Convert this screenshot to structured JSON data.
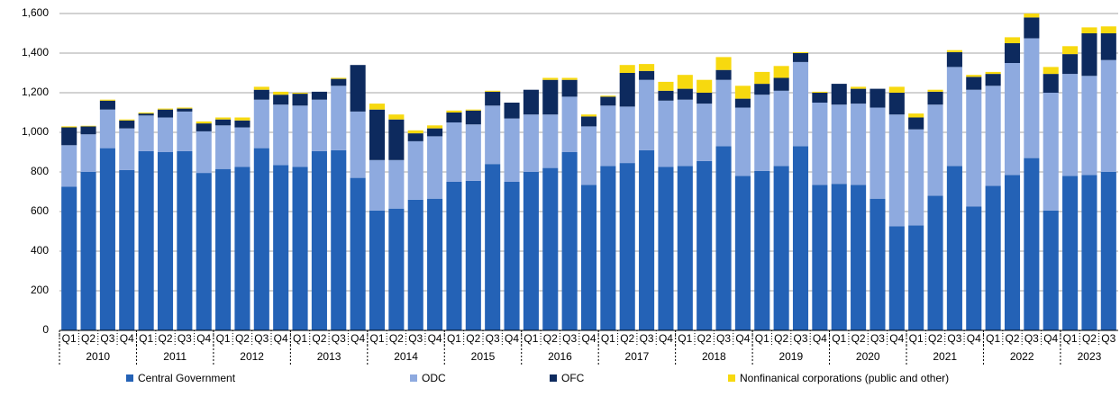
{
  "chart_data": {
    "type": "stacked_bar",
    "categories": [
      "Q1",
      "Q2",
      "Q3",
      "Q4",
      "Q1",
      "Q2",
      "Q3",
      "Q4",
      "Q1",
      "Q2",
      "Q3",
      "Q4",
      "Q1",
      "Q2",
      "Q3",
      "Q4",
      "Q1",
      "Q2",
      "Q3",
      "Q4",
      "Q1",
      "Q2",
      "Q3",
      "Q4",
      "Q1",
      "Q2",
      "Q3",
      "Q4",
      "Q1",
      "Q2",
      "Q3",
      "Q4",
      "Q1",
      "Q2",
      "Q3",
      "Q4",
      "Q1",
      "Q2",
      "Q3",
      "Q4",
      "Q1",
      "Q2",
      "Q3",
      "Q4",
      "Q1",
      "Q2",
      "Q3",
      "Q4",
      "Q1",
      "Q2",
      "Q3",
      "Q4",
      "Q1",
      "Q2",
      "Q3"
    ],
    "years": [
      "2010",
      "2011",
      "2012",
      "2013",
      "2014",
      "2015",
      "2016",
      "2017",
      "2018",
      "2019",
      "2020",
      "2021",
      "2022",
      "2023"
    ],
    "ylim": [
      0,
      1600
    ],
    "yticks": [
      0,
      200,
      400,
      600,
      800,
      {
        "value": 1000,
        "label": "1,000"
      },
      {
        "value": 1200,
        "label": "1,200"
      },
      {
        "value": 1400,
        "label": "1,400"
      },
      {
        "value": 1600,
        "label": "1,600"
      }
    ],
    "grid": true,
    "legend": "bottom",
    "series": [
      {
        "name": "Central Government",
        "color": "#2462b6",
        "values": [
          725,
          800,
          920,
          810,
          905,
          900,
          905,
          795,
          815,
          825,
          920,
          835,
          825,
          905,
          910,
          770,
          605,
          615,
          660,
          665,
          750,
          755,
          840,
          750,
          800,
          820,
          900,
          735,
          830,
          845,
          910,
          825,
          830,
          855,
          930,
          780,
          805,
          830,
          930,
          735,
          740,
          735,
          665,
          525,
          530,
          680,
          830,
          625,
          730,
          785,
          870,
          605,
          780,
          785,
          800
        ]
      },
      {
        "name": "ODC",
        "color": "#8eaadf",
        "values": [
          210,
          190,
          195,
          210,
          180,
          175,
          200,
          210,
          220,
          200,
          245,
          305,
          310,
          260,
          325,
          335,
          255,
          245,
          295,
          315,
          300,
          285,
          295,
          320,
          290,
          270,
          280,
          295,
          305,
          285,
          355,
          335,
          335,
          290,
          335,
          345,
          385,
          380,
          425,
          415,
          400,
          410,
          460,
          565,
          485,
          460,
          500,
          590,
          505,
          565,
          605,
          595,
          515,
          500,
          565
        ]
      },
      {
        "name": "OFC",
        "color": "#0d2a5e",
        "values": [
          90,
          40,
          45,
          40,
          10,
          40,
          15,
          40,
          30,
          35,
          50,
          50,
          60,
          40,
          35,
          235,
          255,
          205,
          40,
          40,
          50,
          70,
          70,
          80,
          125,
          175,
          85,
          50,
          45,
          170,
          45,
          50,
          55,
          55,
          50,
          45,
          55,
          65,
          45,
          50,
          105,
          75,
          95,
          110,
          60,
          65,
          75,
          65,
          60,
          100,
          105,
          95,
          100,
          215,
          135
        ]
      },
      {
        "name": "Nonfinanical corporations (public and other)",
        "color": "#f7d90f",
        "values": [
          5,
          3,
          5,
          5,
          5,
          5,
          5,
          10,
          10,
          15,
          15,
          15,
          5,
          0,
          5,
          0,
          30,
          25,
          15,
          15,
          10,
          5,
          5,
          0,
          0,
          10,
          10,
          10,
          5,
          40,
          35,
          45,
          70,
          65,
          65,
          65,
          60,
          60,
          5,
          5,
          0,
          10,
          0,
          30,
          20,
          10,
          10,
          10,
          10,
          30,
          20,
          35,
          40,
          30,
          35
        ]
      }
    ]
  }
}
